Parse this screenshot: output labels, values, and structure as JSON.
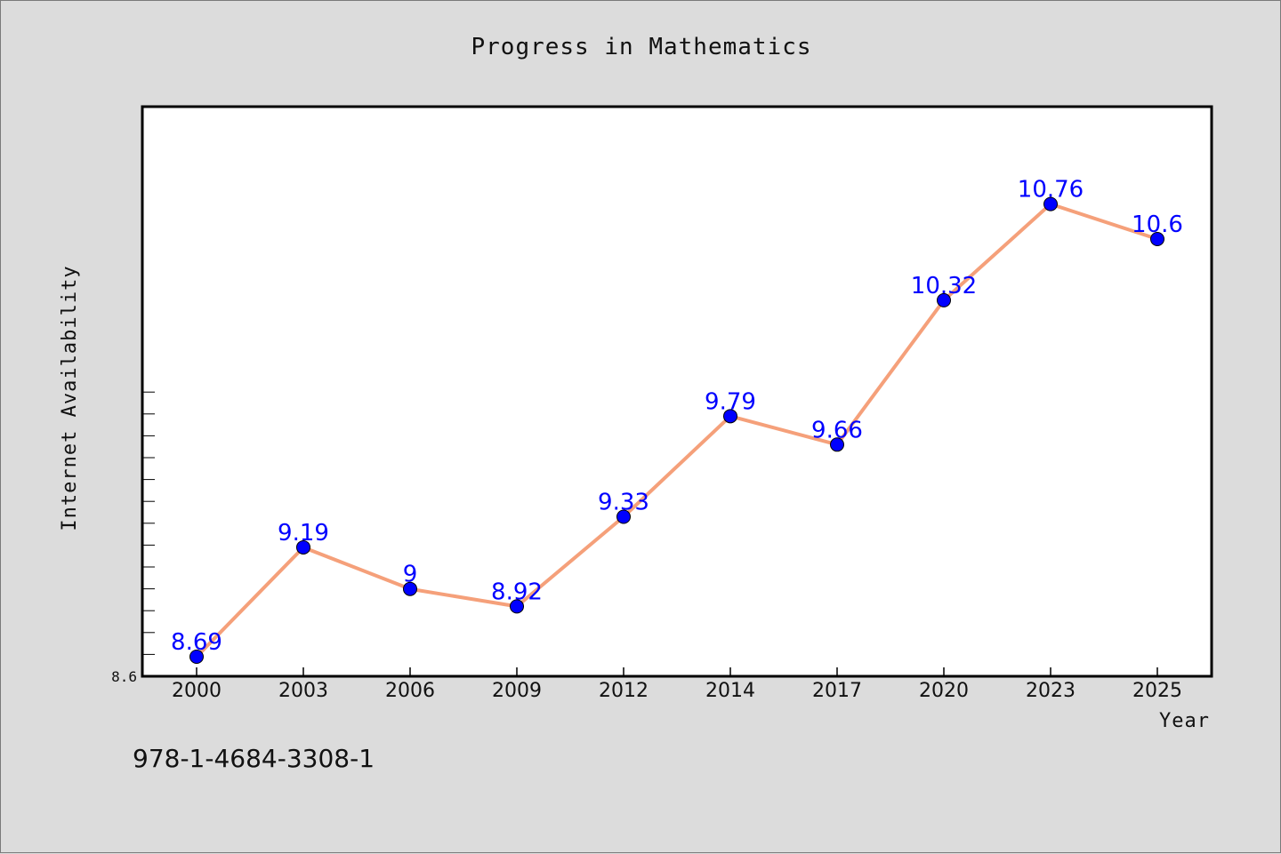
{
  "chart_data": {
    "type": "line",
    "title": "Progress in Mathematics",
    "xlabel": "Year",
    "ylabel": "Internet Availability",
    "categories": [
      "2000",
      "2003",
      "2006",
      "2009",
      "2012",
      "2014",
      "2017",
      "2020",
      "2023",
      "2025"
    ],
    "series": [
      {
        "values": [
          8.69,
          9.19,
          9,
          8.92,
          9.33,
          9.79,
          9.66,
          10.32,
          10.76,
          10.6
        ],
        "labels": [
          "8.69",
          "9.19",
          "9",
          "8.92",
          "9.33",
          "9.79",
          "9.66",
          "10.32",
          "10.76",
          "10.6"
        ],
        "line_color": "#f5a07a",
        "marker_color": "#0000ff"
      }
    ],
    "y_min_label": "8.6",
    "ylim": [
      8.6,
      11.2
    ],
    "grid": false
  },
  "footer_code": "978-1-4684-3308-1",
  "colors": {
    "background": "#dcdcdc",
    "plot_background": "#ffffff",
    "line": "#f5a07a",
    "marker": "#0000ff",
    "data_label": "#0000ff"
  }
}
